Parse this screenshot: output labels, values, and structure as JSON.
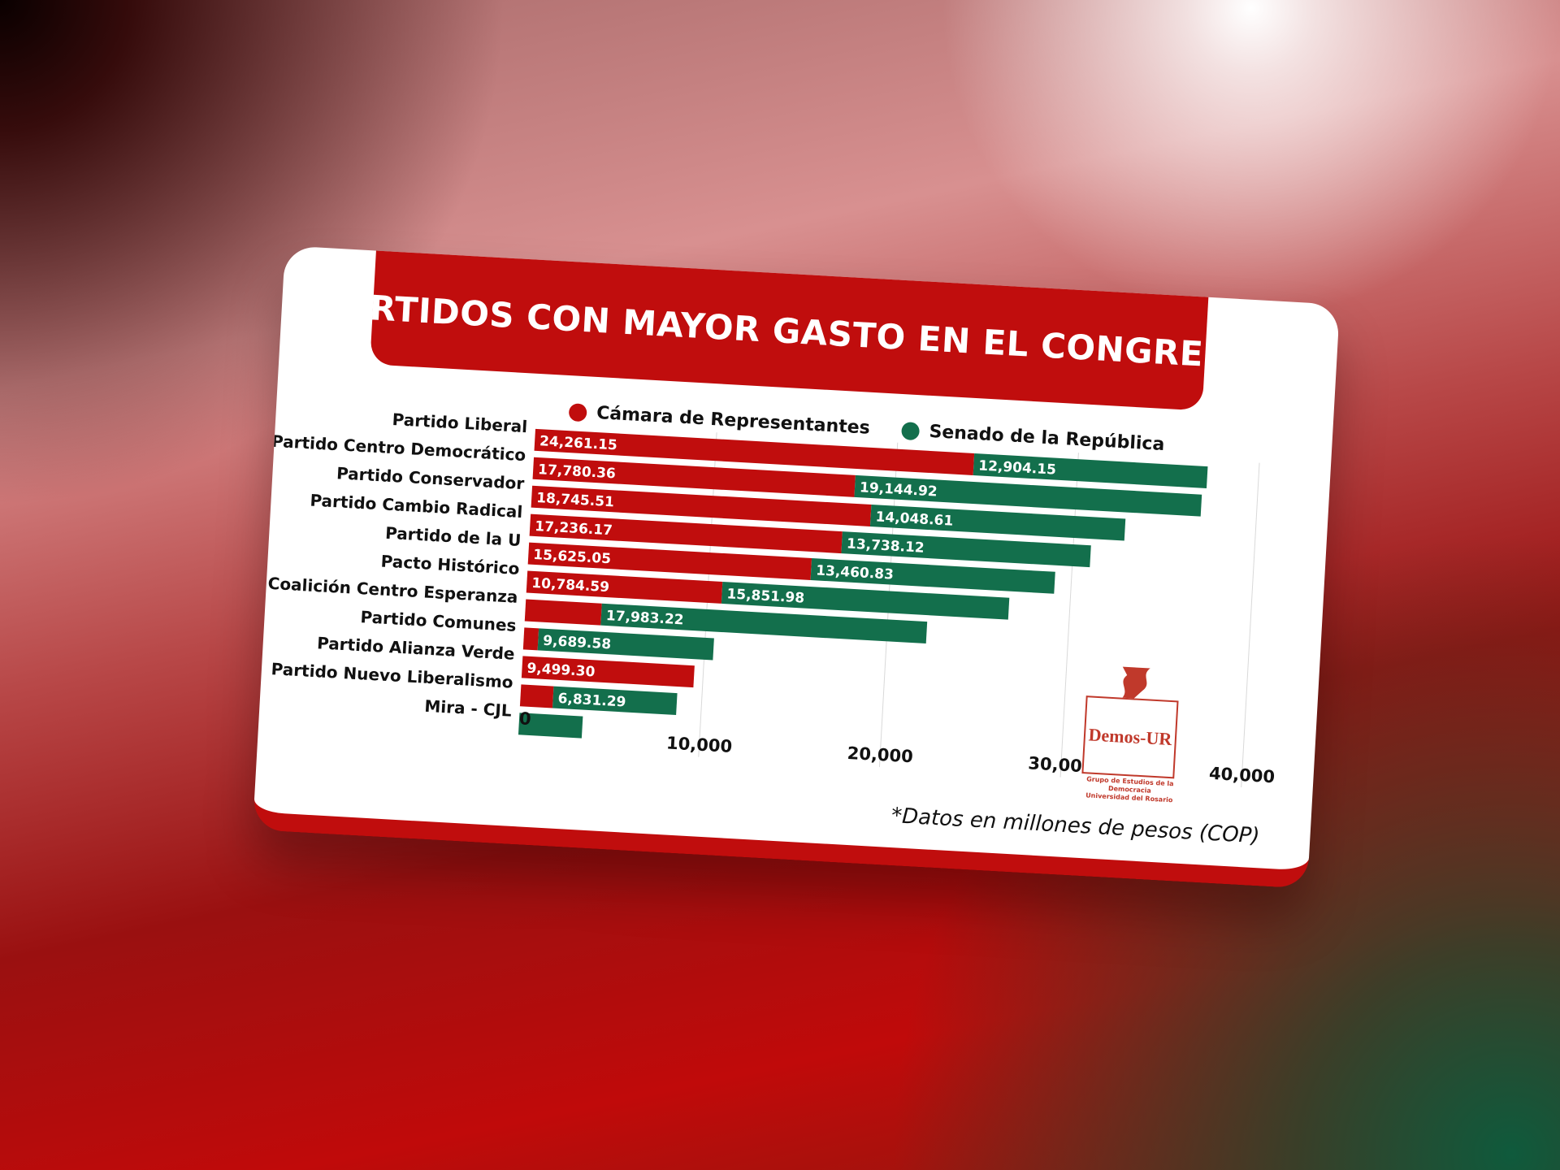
{
  "chart_data": {
    "type": "bar",
    "orientation": "horizontal",
    "stacked": true,
    "title": "PARTIDOS CON MAYOR GASTO EN EL CONGRESO",
    "categories": [
      "Partido Liberal",
      "Partido Centro Democrático",
      "Partido Conservador",
      "Partido Cambio Radical",
      "Partido de la U",
      "Pacto Histórico",
      "Coalición Centro Esperanza",
      "Partido Comunes",
      "Partido Alianza Verde",
      "Partido Nuevo Liberalismo",
      "Mira - CJL"
    ],
    "series": [
      {
        "name": "Cámara de Representantes",
        "color": "#c00d0d",
        "values": [
          24261.15,
          17780.36,
          18745.51,
          17236.17,
          15625.05,
          10784.59,
          4200,
          800,
          9499.3,
          1800,
          0
        ],
        "labels": [
          "24,261.15",
          "17,780.36",
          "18,745.51",
          "17,236.17",
          "15,625.05",
          "10,784.59",
          "",
          "",
          "9,499.30",
          "",
          ""
        ]
      },
      {
        "name": "Senado de la República",
        "color": "#136f4c",
        "values": [
          12904.15,
          19144.92,
          14048.61,
          13738.12,
          13460.83,
          15851.98,
          17983.22,
          9689.58,
          0,
          6831.29,
          3500
        ],
        "labels": [
          "12,904.15",
          "19,144.92",
          "14,048.61",
          "13,738.12",
          "13,460.83",
          "15,851.98",
          "17,983.22",
          "9,689.58",
          "",
          "6,831.29",
          ""
        ]
      }
    ],
    "xlim": [
      0,
      40000
    ],
    "xticks": [
      "0",
      "10,000",
      "20,000",
      "30,000",
      "40,000"
    ],
    "xlabel": "",
    "ylabel": "",
    "grid": true,
    "legend": "top-right"
  },
  "legend": {
    "camara": "Cámara de Representantes",
    "senado": "Senado de la República"
  },
  "footnote": "*Datos en millones de pesos (COP)",
  "logo": {
    "name": "Demos-UR",
    "subtitle_line1": "Grupo de Estudios de la Democracia",
    "subtitle_line2": "Universidad del Rosario"
  },
  "colors": {
    "accent_red": "#c00d0d",
    "senado_green": "#136f4c"
  }
}
